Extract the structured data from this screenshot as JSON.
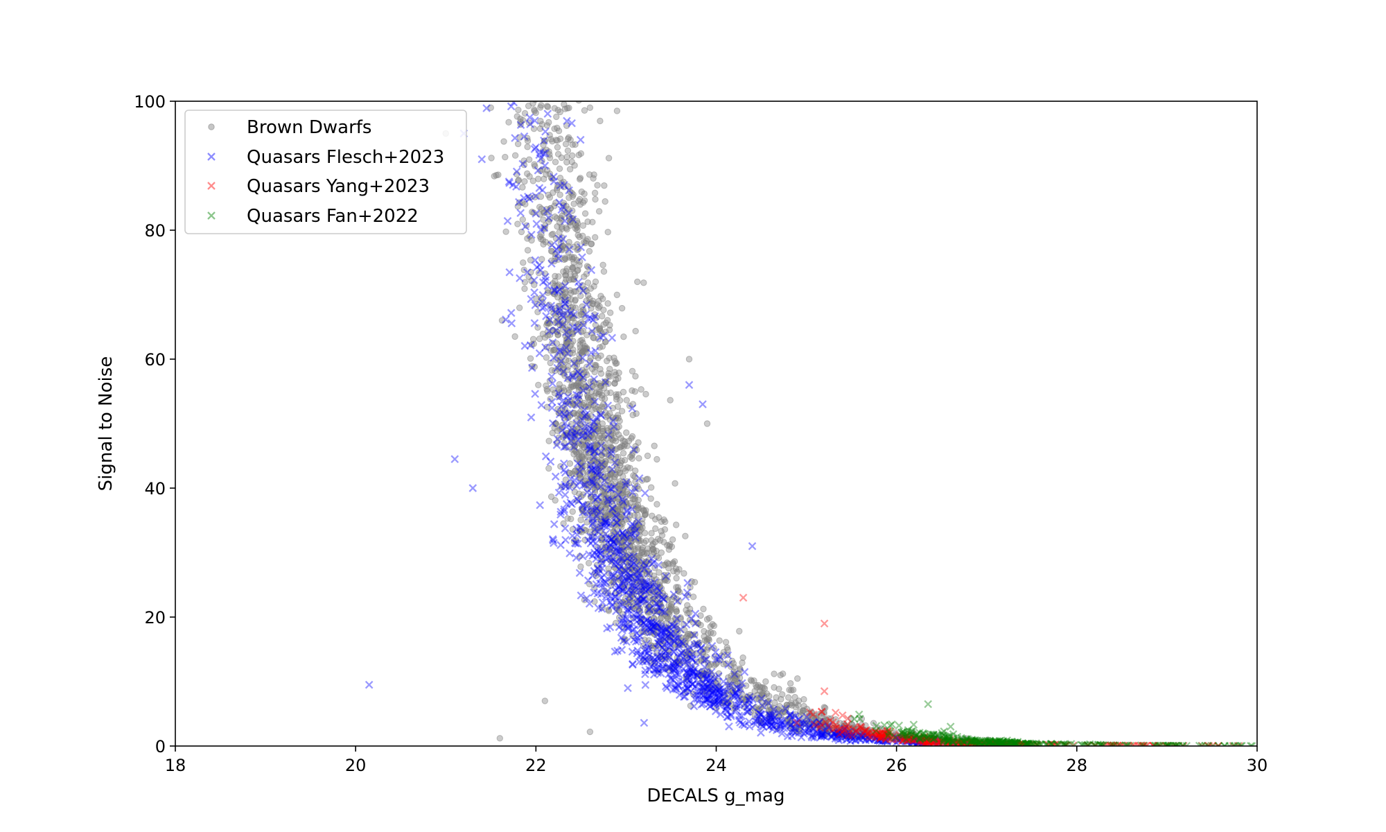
{
  "chart_data": {
    "type": "scatter",
    "title": "",
    "xlabel": "DECALS g_mag",
    "ylabel": "Signal to Noise",
    "xlim": [
      18,
      30
    ],
    "ylim": [
      0,
      100
    ],
    "xticks": [
      18,
      20,
      22,
      24,
      26,
      28,
      30
    ],
    "yticks": [
      0,
      20,
      40,
      60,
      80,
      100
    ],
    "grid": false,
    "legend_position": "upper-left",
    "series": [
      {
        "name": "Brown Dwarfs",
        "marker": "circle",
        "color": "#808080",
        "model": {
          "a": 52,
          "k": 1.05,
          "x0": 22.6
        },
        "count": 2600,
        "seed": 11,
        "points": [
          [
            21.6,
            1.2
          ],
          [
            22.6,
            2.2
          ],
          [
            22.1,
            7.0
          ],
          [
            21.0,
            95.0
          ],
          [
            21.5,
            99.0
          ],
          [
            22.6,
            99.0
          ],
          [
            22.9,
            98.5
          ],
          [
            23.7,
            60.0
          ],
          [
            23.9,
            50.0
          ]
        ]
      },
      {
        "name": "Quasars Flesch+2023",
        "marker": "x",
        "color": "#0000ff",
        "model": {
          "a": 32,
          "k": 1.15,
          "x0": 22.8
        },
        "count": 1300,
        "seed": 23,
        "points": [
          [
            20.15,
            9.5
          ],
          [
            21.1,
            44.5
          ],
          [
            21.3,
            40.0
          ],
          [
            23.2,
            3.6
          ],
          [
            23.7,
            56.0
          ],
          [
            23.85,
            53.0
          ],
          [
            24.4,
            31.0
          ],
          [
            21.2,
            95.0
          ],
          [
            21.4,
            91.0
          ],
          [
            22.1,
            90.0
          ]
        ]
      },
      {
        "name": "Quasars Yang+2023",
        "marker": "x",
        "color": "#ff0000",
        "model": {
          "a": 2.2,
          "k": 1.35,
          "x0": 25.6
        },
        "count": 320,
        "seed": 37,
        "points": [
          [
            24.3,
            23.0
          ],
          [
            25.2,
            19.0
          ],
          [
            25.2,
            8.5
          ],
          [
            25.6,
            3.0
          ]
        ]
      },
      {
        "name": "Quasars Fan+2022",
        "marker": "x",
        "color": "#008000",
        "model": {
          "a": 1.8,
          "k": 1.35,
          "x0": 26.2
        },
        "count": 320,
        "seed": 53,
        "points": [
          [
            26.35,
            6.5
          ],
          [
            26.6,
            3.0
          ]
        ]
      }
    ]
  }
}
